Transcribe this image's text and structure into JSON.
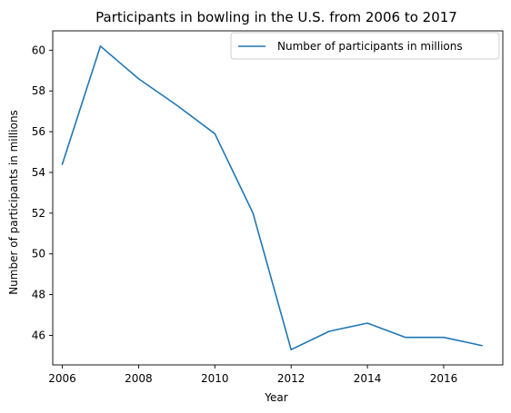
{
  "chart_data": {
    "type": "line",
    "title": "Participants in bowling in the U.S. from 2006 to 2017",
    "xlabel": "Year",
    "ylabel": "Number of participants in millions",
    "x": [
      2006,
      2007,
      2008,
      2009,
      2010,
      2011,
      2012,
      2013,
      2014,
      2015,
      2016,
      2017
    ],
    "series": [
      {
        "name": "Number of participants in millions",
        "color": "#1f77b4",
        "values": [
          54.4,
          60.2,
          58.6,
          57.3,
          55.9,
          52.0,
          45.3,
          46.2,
          46.6,
          45.9,
          45.9,
          45.5
        ]
      }
    ],
    "xlim": [
      2005.75,
      2017.55
    ],
    "ylim": [
      44.55,
      60.95
    ],
    "xticks": [
      2006,
      2008,
      2010,
      2012,
      2014,
      2016
    ],
    "yticks": [
      46,
      48,
      50,
      52,
      54,
      56,
      58,
      60
    ],
    "grid": false,
    "legend_position": "top-right"
  }
}
